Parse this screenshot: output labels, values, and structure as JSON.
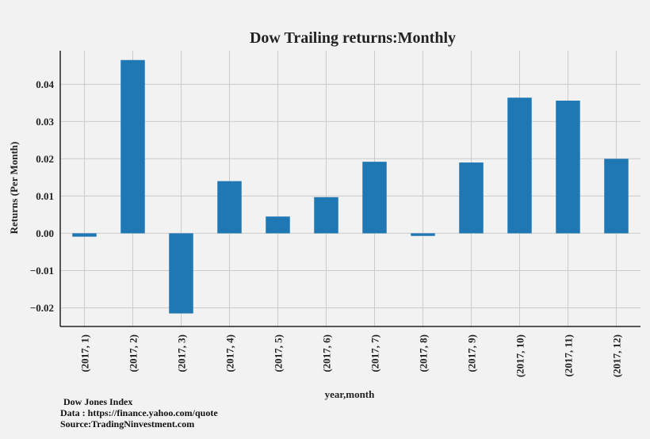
{
  "chart_data": {
    "type": "bar",
    "title": "Dow Trailing returns:Monthly",
    "xlabel": "year,month",
    "ylabel": "Returns (Per Month)",
    "categories": [
      "(2017, 1)",
      "(2017, 2)",
      "(2017, 3)",
      "(2017, 4)",
      "(2017, 5)",
      "(2017, 6)",
      "(2017, 7)",
      "(2017, 8)",
      "(2017, 9)",
      "(2017, 10)",
      "(2017, 11)",
      "(2017, 12)"
    ],
    "values": [
      -0.0009,
      0.0465,
      -0.0215,
      0.014,
      0.0045,
      0.0097,
      0.0192,
      -0.0007,
      0.019,
      0.0364,
      0.0356,
      0.02
    ],
    "ylim": [
      -0.025,
      0.049
    ],
    "yticks": [
      -0.02,
      -0.01,
      0.0,
      0.01,
      0.02,
      0.03,
      0.04
    ],
    "ytick_labels": [
      "−0.02",
      "−0.01",
      "0.00",
      "0.01",
      "0.02",
      "0.03",
      "0.04"
    ],
    "grid": true,
    "bar_color": "#1f77b4",
    "grid_color": "#cbcbcb",
    "background_color": "#f2f2f2"
  },
  "notes": {
    "line1": "Dow Jones Index",
    "line2": "Data : https://finance.yahoo.com/quote",
    "line3": "Source:TradingNinvestment.com"
  }
}
